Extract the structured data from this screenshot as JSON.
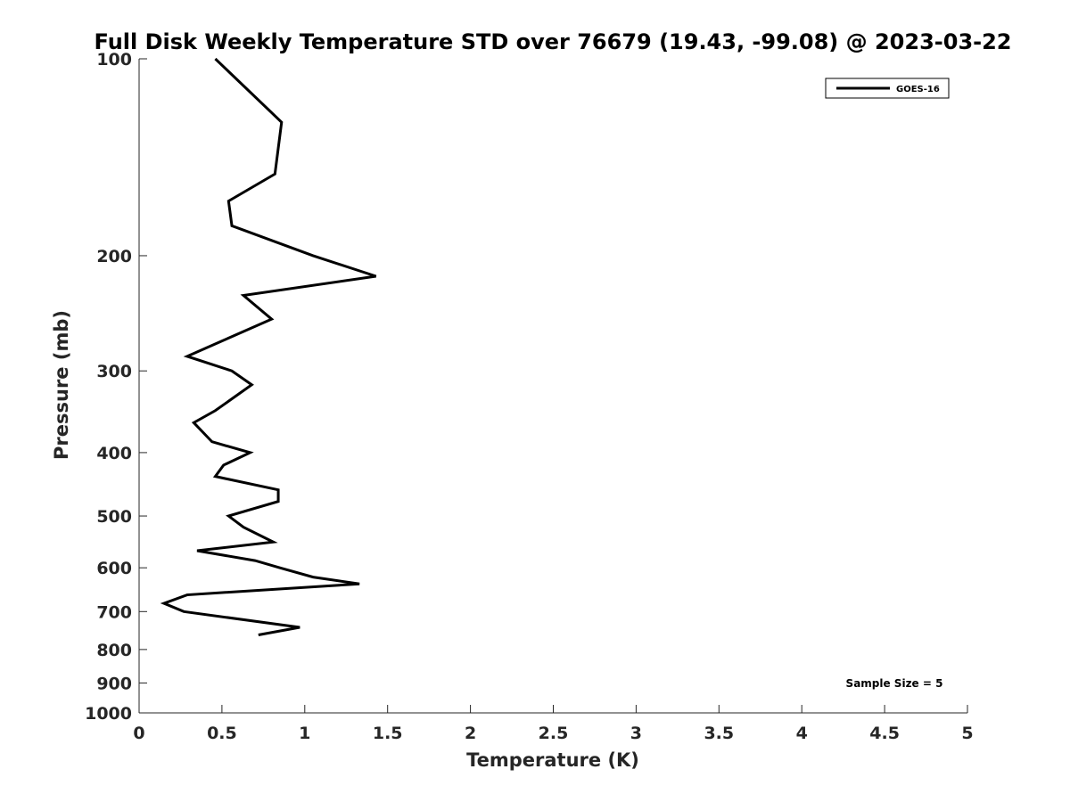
{
  "chart_data": {
    "type": "line",
    "title": "Full Disk Weekly Temperature STD over 76679 (19.43, -99.08) @ 2023-03-22",
    "xlabel": "Temperature (K)",
    "ylabel": "Pressure (mb)",
    "xlim": [
      0,
      5
    ],
    "ylim": [
      100,
      1000
    ],
    "yscale": "log",
    "y_reversed": true,
    "grid": false,
    "legend_position": "top-right",
    "x_ticks": [
      "0",
      "0.5",
      "1",
      "1.5",
      "2",
      "2.5",
      "3",
      "3.5",
      "4",
      "4.5",
      "5"
    ],
    "y_ticks": [
      "100",
      "200",
      "300",
      "400",
      "500",
      "600",
      "700",
      "800",
      "900",
      "1000"
    ],
    "series": [
      {
        "name": "GOES-16",
        "color": "#000000",
        "points": [
          {
            "x": 0.46,
            "y": 100
          },
          {
            "x": 0.86,
            "y": 125
          },
          {
            "x": 0.82,
            "y": 150
          },
          {
            "x": 0.54,
            "y": 165
          },
          {
            "x": 0.56,
            "y": 180
          },
          {
            "x": 1.05,
            "y": 200
          },
          {
            "x": 1.43,
            "y": 215
          },
          {
            "x": 0.63,
            "y": 230
          },
          {
            "x": 0.8,
            "y": 250
          },
          {
            "x": 0.29,
            "y": 285
          },
          {
            "x": 0.56,
            "y": 300
          },
          {
            "x": 0.68,
            "y": 315
          },
          {
            "x": 0.46,
            "y": 345
          },
          {
            "x": 0.33,
            "y": 360
          },
          {
            "x": 0.44,
            "y": 385
          },
          {
            "x": 0.67,
            "y": 400
          },
          {
            "x": 0.51,
            "y": 418
          },
          {
            "x": 0.46,
            "y": 435
          },
          {
            "x": 0.84,
            "y": 456
          },
          {
            "x": 0.84,
            "y": 475
          },
          {
            "x": 0.54,
            "y": 500
          },
          {
            "x": 0.63,
            "y": 520
          },
          {
            "x": 0.81,
            "y": 548
          },
          {
            "x": 0.35,
            "y": 565
          },
          {
            "x": 0.7,
            "y": 585
          },
          {
            "x": 0.85,
            "y": 600
          },
          {
            "x": 1.05,
            "y": 620
          },
          {
            "x": 1.33,
            "y": 635
          },
          {
            "x": 0.29,
            "y": 660
          },
          {
            "x": 0.15,
            "y": 680
          },
          {
            "x": 0.27,
            "y": 700
          },
          {
            "x": 0.97,
            "y": 740
          },
          {
            "x": 0.72,
            "y": 760
          }
        ]
      }
    ],
    "annotation": "Sample Size = 5"
  }
}
